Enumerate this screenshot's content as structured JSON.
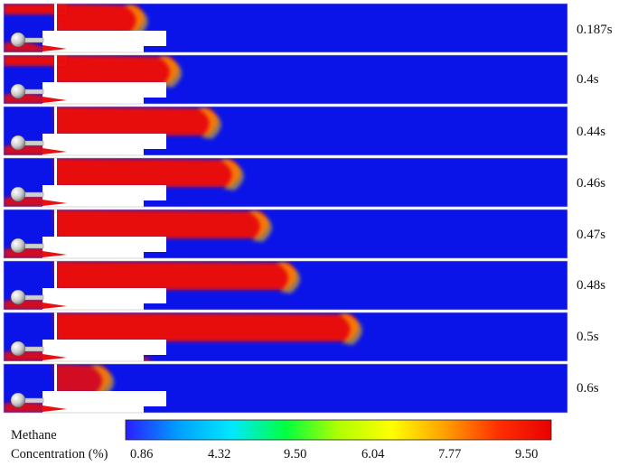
{
  "frames": [
    {
      "time_label": "0.187s",
      "plume_extent": 0.14,
      "lower_fill": 0.05
    },
    {
      "time_label": "0.4s",
      "plume_extent": 0.2,
      "lower_fill": 0.15
    },
    {
      "time_label": "0.44s",
      "plume_extent": 0.27,
      "lower_fill": 0.3
    },
    {
      "time_label": "0.46s",
      "plume_extent": 0.31,
      "lower_fill": 0.45
    },
    {
      "time_label": "0.47s",
      "plume_extent": 0.36,
      "lower_fill": 0.6
    },
    {
      "time_label": "0.48s",
      "plume_extent": 0.41,
      "lower_fill": 0.75
    },
    {
      "time_label": "0.5s",
      "plume_extent": 0.52,
      "lower_fill": 0.85
    },
    {
      "time_label": "0.6s",
      "plume_extent": 0.08,
      "lower_fill": 0.2
    }
  ],
  "colors": {
    "background": "#0a14e8",
    "high": "#e81010",
    "obstacle": "#ffffff",
    "sphere": "#d8d8d8"
  },
  "legend": {
    "title_line1": "Methane",
    "title_line2": "Concentration (%)",
    "ticks": [
      "0.86",
      "4.32",
      "9.50",
      "6.04",
      "7.77",
      "9.50"
    ],
    "gradient": [
      "#2a1cff",
      "#00a0ff",
      "#00e8ff",
      "#00ff40",
      "#b0ff00",
      "#ffff00",
      "#ffa000",
      "#ff3000",
      "#e80000"
    ]
  }
}
